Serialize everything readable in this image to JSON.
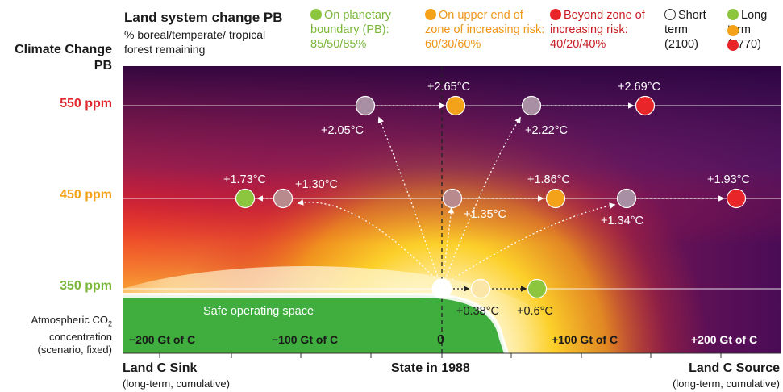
{
  "header": {
    "title": "Land system change PB",
    "subtitle": "% boreal/temperate/ tropical forest remaining"
  },
  "legend": {
    "on_pb": "On planetary boundary (PB): 85/50/85%",
    "upper": "On upper end of zone of increasing risk: 60/30/60%",
    "beyond": "Beyond zone of increasing risk: 40/20/40%",
    "short_term": "Short term (2100)",
    "long_term": "Long term (2770)"
  },
  "left_axis": {
    "title": "Climate Change PB",
    "levels": [
      {
        "label": "550 ppm",
        "color": "#e0262e"
      },
      {
        "label": "450 ppm",
        "color": "#f5a21b"
      },
      {
        "label": "350 ppm",
        "color": "#8cc63e"
      }
    ],
    "footnote_line1": "Atmospheric CO",
    "footnote_sub": "2",
    "footnote_line2": "concentration",
    "footnote_line3": "(scenario, fixed)"
  },
  "x_axis": {
    "ticks": [
      "−200 Gt of C",
      "−100 Gt of C",
      "0",
      "+100 Gt of C",
      "+200 Gt of C"
    ],
    "left_title": "Land C Sink",
    "left_sub": "(long-term, cumulative)",
    "center_title": "State in 1988",
    "right_title": "Land C Source",
    "right_sub": "(long-term, cumulative)"
  },
  "safe_space_label": "Safe operating space",
  "colors": {
    "green": "#8cc63e",
    "orange": "#f5a21b",
    "red": "#e8262a",
    "short_term_grey": "#a98fa3",
    "safe_green": "#3fae3f",
    "purple_dark": "#3d0a4a"
  },
  "temperature_labels": {
    "t550_a": "+2.05°C",
    "t550_b": "+2.65°C",
    "t550_c": "+2.22°C",
    "t550_d": "+2.69°C",
    "t450_a": "+1.73°C",
    "t450_b": "+1.30°C",
    "t450_c": "+1.35°C",
    "t450_d": "+1.86°C",
    "t450_e": "+1.34°C",
    "t450_f": "+1.93°C",
    "t350_a": "+0.38°C",
    "t350_b": "+0.6°C"
  }
}
